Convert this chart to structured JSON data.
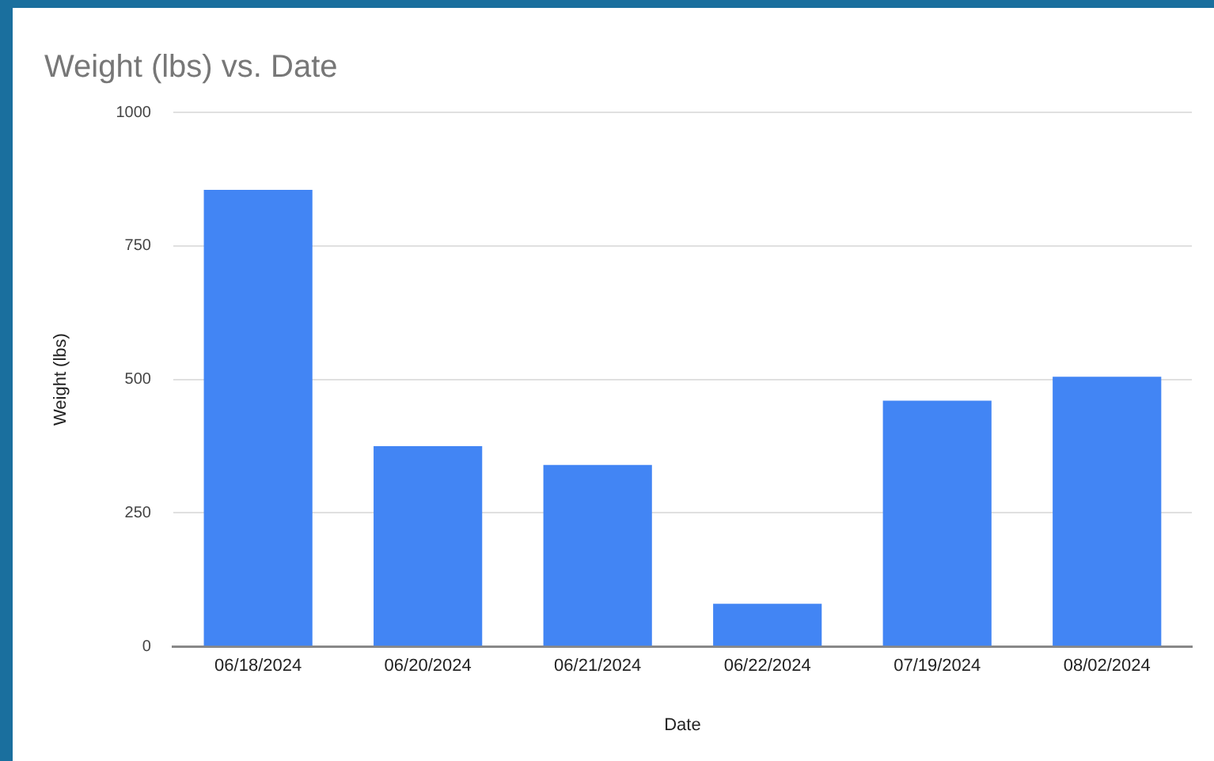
{
  "chart_data": {
    "type": "bar",
    "title": "Weight (lbs) vs. Date",
    "xlabel": "Date",
    "ylabel": "Weight (lbs)",
    "categories": [
      "06/18/2024",
      "06/20/2024",
      "06/21/2024",
      "06/22/2024",
      "07/19/2024",
      "08/02/2024"
    ],
    "values": [
      855,
      375,
      340,
      80,
      460,
      505
    ],
    "color": "#4285f4",
    "ylim": [
      0,
      1000
    ],
    "yticks": [
      0,
      250,
      500,
      750,
      1000
    ],
    "grid": "y"
  }
}
